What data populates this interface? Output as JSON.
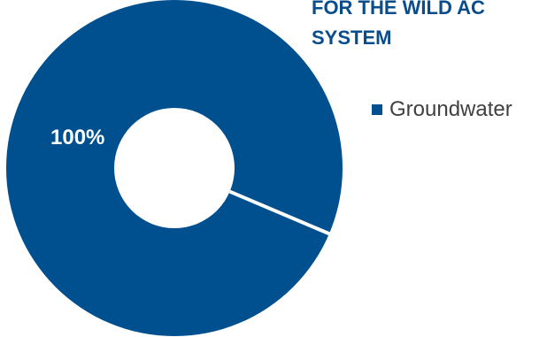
{
  "colors": {
    "title": "#0a4d8c",
    "slice": "#00508f",
    "separator": "#ffffff",
    "legend_text": "#404040"
  },
  "chart_data": {
    "type": "pie",
    "style": "donut",
    "title_lines": [
      "FOR THE WILD AC",
      "SYSTEM"
    ],
    "categories": [
      "Groundwater"
    ],
    "values": [
      100
    ],
    "data_labels": [
      "100%"
    ],
    "legend": {
      "position": "right",
      "entries": [
        "Groundwater"
      ]
    }
  }
}
